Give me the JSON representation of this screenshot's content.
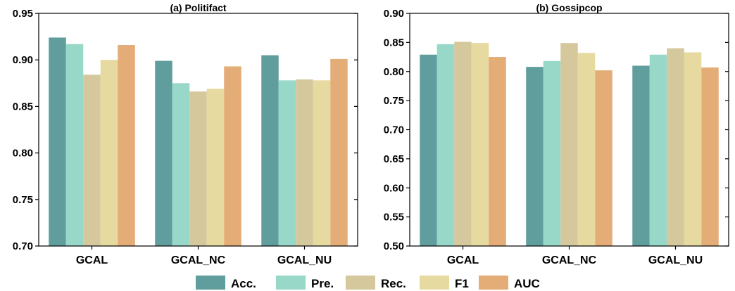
{
  "legend": [
    {
      "name": "Acc.",
      "color": "#609e9e"
    },
    {
      "name": "Pre.",
      "color": "#98d8c8"
    },
    {
      "name": "Rec.",
      "color": "#d4c89c"
    },
    {
      "name": "F1",
      "color": "#e6daa0"
    },
    {
      "name": "AUC",
      "color": "#e4ac76"
    }
  ],
  "chart_data": [
    {
      "type": "bar",
      "title": "(a) Politifact",
      "categories": [
        "GCAL",
        "GCAL_NC",
        "GCAL_NU"
      ],
      "ylim": [
        0.7,
        0.95
      ],
      "yticks": [
        "0.70",
        "0.75",
        "0.80",
        "0.85",
        "0.90",
        "0.95"
      ],
      "grid": false,
      "series": [
        {
          "name": "Acc.",
          "values": [
            0.924,
            0.899,
            0.905
          ]
        },
        {
          "name": "Pre.",
          "values": [
            0.917,
            0.875,
            0.878
          ]
        },
        {
          "name": "Rec.",
          "values": [
            0.884,
            0.866,
            0.879
          ]
        },
        {
          "name": "F1",
          "values": [
            0.9,
            0.869,
            0.878
          ]
        },
        {
          "name": "AUC",
          "values": [
            0.916,
            0.893,
            0.901
          ]
        }
      ]
    },
    {
      "type": "bar",
      "title": "(b) Gossipcop",
      "categories": [
        "GCAL",
        "GCAL_NC",
        "GCAL_NU"
      ],
      "ylim": [
        0.5,
        0.9
      ],
      "yticks": [
        "0.50",
        "0.55",
        "0.60",
        "0.65",
        "0.70",
        "0.75",
        "0.80",
        "0.85",
        "0.90"
      ],
      "grid": false,
      "series": [
        {
          "name": "Acc.",
          "values": [
            0.829,
            0.808,
            0.81
          ]
        },
        {
          "name": "Pre.",
          "values": [
            0.847,
            0.818,
            0.829
          ]
        },
        {
          "name": "Rec.",
          "values": [
            0.851,
            0.849,
            0.84
          ]
        },
        {
          "name": "F1",
          "values": [
            0.849,
            0.832,
            0.833
          ]
        },
        {
          "name": "AUC",
          "values": [
            0.825,
            0.802,
            0.807
          ]
        }
      ]
    }
  ]
}
